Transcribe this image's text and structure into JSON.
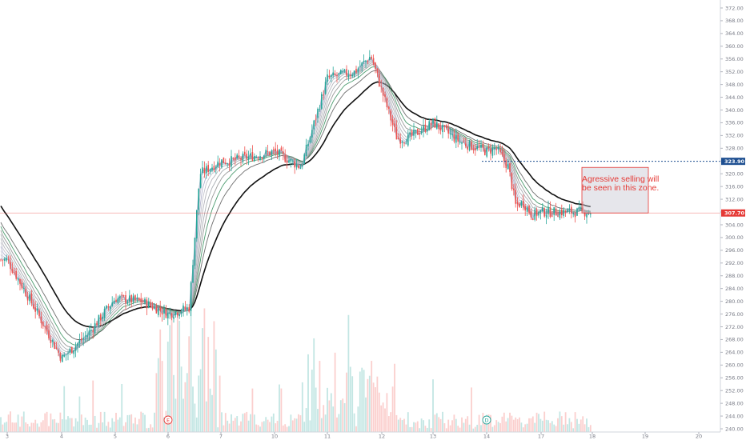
{
  "chart_data": {
    "type": "candlestick",
    "x_ticks": [
      "3",
      "4",
      "5",
      "6",
      "7",
      "10",
      "11",
      "12",
      "13",
      "14",
      "17",
      "18",
      "19",
      "20"
    ],
    "y_ticks": [
      240,
      244,
      248,
      252,
      256,
      260,
      264,
      268,
      272,
      276,
      280,
      284,
      288,
      292,
      296,
      300,
      304,
      308,
      312,
      316,
      320,
      324,
      328,
      332,
      336,
      340,
      344,
      348,
      352,
      356,
      360,
      364,
      368,
      372
    ],
    "ylim": [
      239,
      374
    ],
    "price_labels": [
      {
        "text": "323.90",
        "value": 323.9,
        "color": "#1e4f91"
      },
      {
        "text": "307.70",
        "value": 307.7,
        "color": "#e53935"
      }
    ],
    "annotation": {
      "lines": [
        "Agressive selling will",
        "be seen in this zone."
      ],
      "y_top": 322.0,
      "y_bottom": 307.7
    },
    "event_markers": [
      {
        "label": "E",
        "x_day": "6",
        "color": "#e53935"
      },
      {
        "label": "D",
        "x_day": "14",
        "color": "#26a69a"
      }
    ],
    "series_colors": {
      "up": "#26a69a",
      "down": "#ef5350",
      "ma_main": "#111111",
      "ma_green": "#2e8b57"
    },
    "price_path": [
      {
        "x": "3",
        "y": 293
      },
      {
        "x": "3.5",
        "y": 278
      },
      {
        "x": "4",
        "y": 262
      },
      {
        "x": "4.5",
        "y": 270
      },
      {
        "x": "5",
        "y": 281
      },
      {
        "x": "5.5",
        "y": 280
      },
      {
        "x": "6",
        "y": 276
      },
      {
        "x": "6.4",
        "y": 278
      },
      {
        "x": "6.6",
        "y": 320
      },
      {
        "x": "7",
        "y": 324
      },
      {
        "x": "7.5",
        "y": 324
      },
      {
        "x": "10",
        "y": 327
      },
      {
        "x": "10.5",
        "y": 322
      },
      {
        "x": "11",
        "y": 350
      },
      {
        "x": "11.5",
        "y": 352
      },
      {
        "x": "11.8",
        "y": 357
      },
      {
        "x": "12",
        "y": 346
      },
      {
        "x": "12.3",
        "y": 331
      },
      {
        "x": "12.5",
        "y": 331
      },
      {
        "x": "13",
        "y": 336
      },
      {
        "x": "13.5",
        "y": 330
      },
      {
        "x": "14",
        "y": 327
      },
      {
        "x": "14.5",
        "y": 328
      },
      {
        "x": "15.2",
        "y": 322
      },
      {
        "x": "15.6",
        "y": 310
      },
      {
        "x": "16",
        "y": 311
      },
      {
        "x": "16.5",
        "y": 307
      },
      {
        "x": "17",
        "y": 308
      }
    ]
  }
}
